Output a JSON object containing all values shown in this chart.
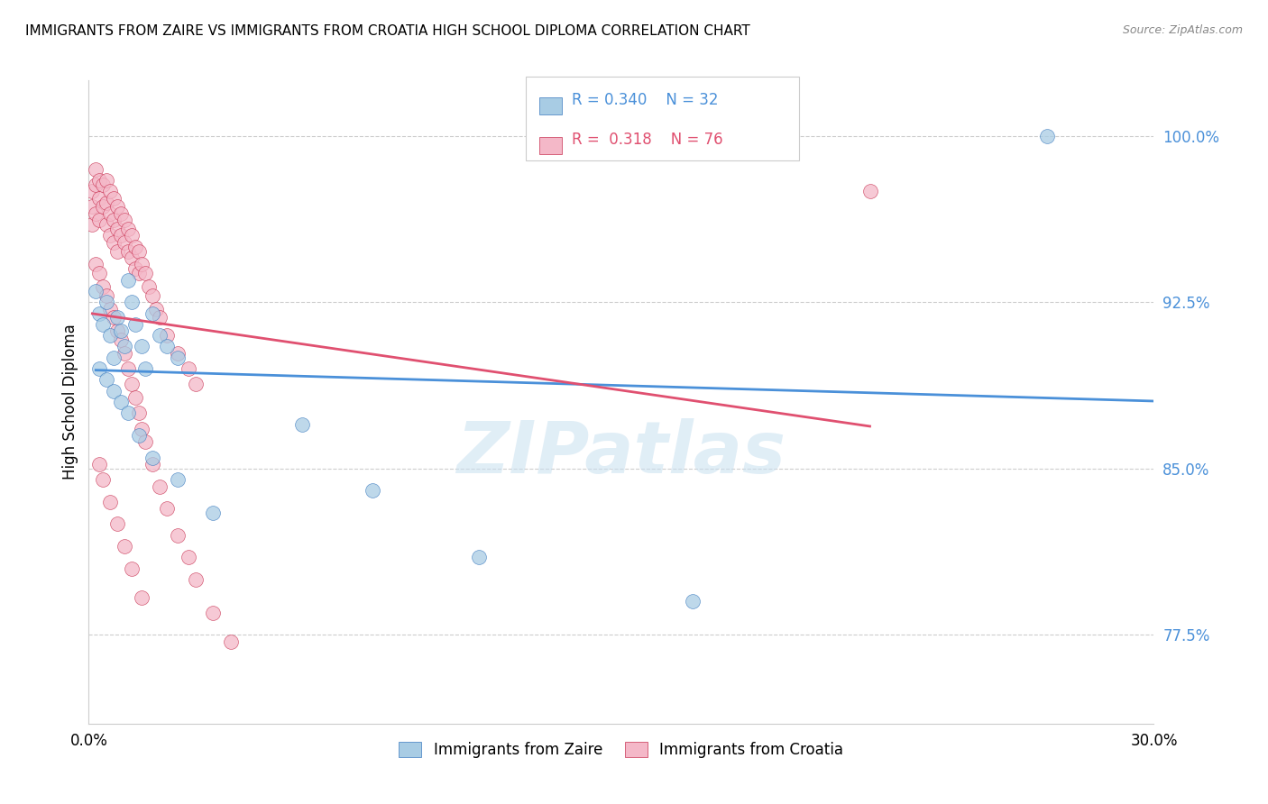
{
  "title": "IMMIGRANTS FROM ZAIRE VS IMMIGRANTS FROM CROATIA HIGH SCHOOL DIPLOMA CORRELATION CHART",
  "source": "Source: ZipAtlas.com",
  "ylabel": "High School Diploma",
  "xlim": [
    0.0,
    0.3
  ],
  "ylim": [
    0.735,
    1.025
  ],
  "watermark": "ZIPatlas",
  "legend_R1": "0.340",
  "legend_N1": "32",
  "legend_R2": "0.318",
  "legend_N2": "76",
  "blue_color": "#a8cce4",
  "pink_color": "#f4b8c8",
  "blue_line_color": "#4a90d9",
  "pink_line_color": "#e05070",
  "blue_edge_color": "#3a7abf",
  "pink_edge_color": "#c83050",
  "zaire_x": [
    0.002,
    0.003,
    0.004,
    0.005,
    0.006,
    0.007,
    0.008,
    0.009,
    0.01,
    0.011,
    0.012,
    0.013,
    0.015,
    0.016,
    0.018,
    0.02,
    0.022,
    0.025,
    0.003,
    0.005,
    0.007,
    0.009,
    0.011,
    0.014,
    0.018,
    0.025,
    0.035,
    0.06,
    0.08,
    0.11,
    0.17,
    0.27
  ],
  "zaire_y": [
    0.93,
    0.92,
    0.915,
    0.925,
    0.91,
    0.9,
    0.918,
    0.912,
    0.905,
    0.935,
    0.925,
    0.915,
    0.905,
    0.895,
    0.92,
    0.91,
    0.905,
    0.9,
    0.895,
    0.89,
    0.885,
    0.88,
    0.875,
    0.865,
    0.855,
    0.845,
    0.83,
    0.87,
    0.84,
    0.81,
    0.79,
    1.0
  ],
  "croatia_x": [
    0.001,
    0.001,
    0.001,
    0.002,
    0.002,
    0.002,
    0.003,
    0.003,
    0.003,
    0.004,
    0.004,
    0.005,
    0.005,
    0.005,
    0.006,
    0.006,
    0.006,
    0.007,
    0.007,
    0.007,
    0.008,
    0.008,
    0.008,
    0.009,
    0.009,
    0.01,
    0.01,
    0.011,
    0.011,
    0.012,
    0.012,
    0.013,
    0.013,
    0.014,
    0.014,
    0.015,
    0.016,
    0.017,
    0.018,
    0.019,
    0.02,
    0.022,
    0.025,
    0.028,
    0.03,
    0.002,
    0.003,
    0.004,
    0.005,
    0.006,
    0.007,
    0.008,
    0.009,
    0.01,
    0.011,
    0.012,
    0.013,
    0.014,
    0.015,
    0.016,
    0.018,
    0.02,
    0.022,
    0.025,
    0.028,
    0.03,
    0.035,
    0.04,
    0.003,
    0.004,
    0.006,
    0.008,
    0.01,
    0.012,
    0.015,
    0.22
  ],
  "croatia_y": [
    0.975,
    0.968,
    0.96,
    0.985,
    0.978,
    0.965,
    0.98,
    0.972,
    0.962,
    0.978,
    0.968,
    0.98,
    0.97,
    0.96,
    0.975,
    0.965,
    0.955,
    0.972,
    0.962,
    0.952,
    0.968,
    0.958,
    0.948,
    0.965,
    0.955,
    0.962,
    0.952,
    0.958,
    0.948,
    0.955,
    0.945,
    0.95,
    0.94,
    0.948,
    0.938,
    0.942,
    0.938,
    0.932,
    0.928,
    0.922,
    0.918,
    0.91,
    0.902,
    0.895,
    0.888,
    0.942,
    0.938,
    0.932,
    0.928,
    0.922,
    0.918,
    0.912,
    0.908,
    0.902,
    0.895,
    0.888,
    0.882,
    0.875,
    0.868,
    0.862,
    0.852,
    0.842,
    0.832,
    0.82,
    0.81,
    0.8,
    0.785,
    0.772,
    0.852,
    0.845,
    0.835,
    0.825,
    0.815,
    0.805,
    0.792,
    0.975
  ]
}
